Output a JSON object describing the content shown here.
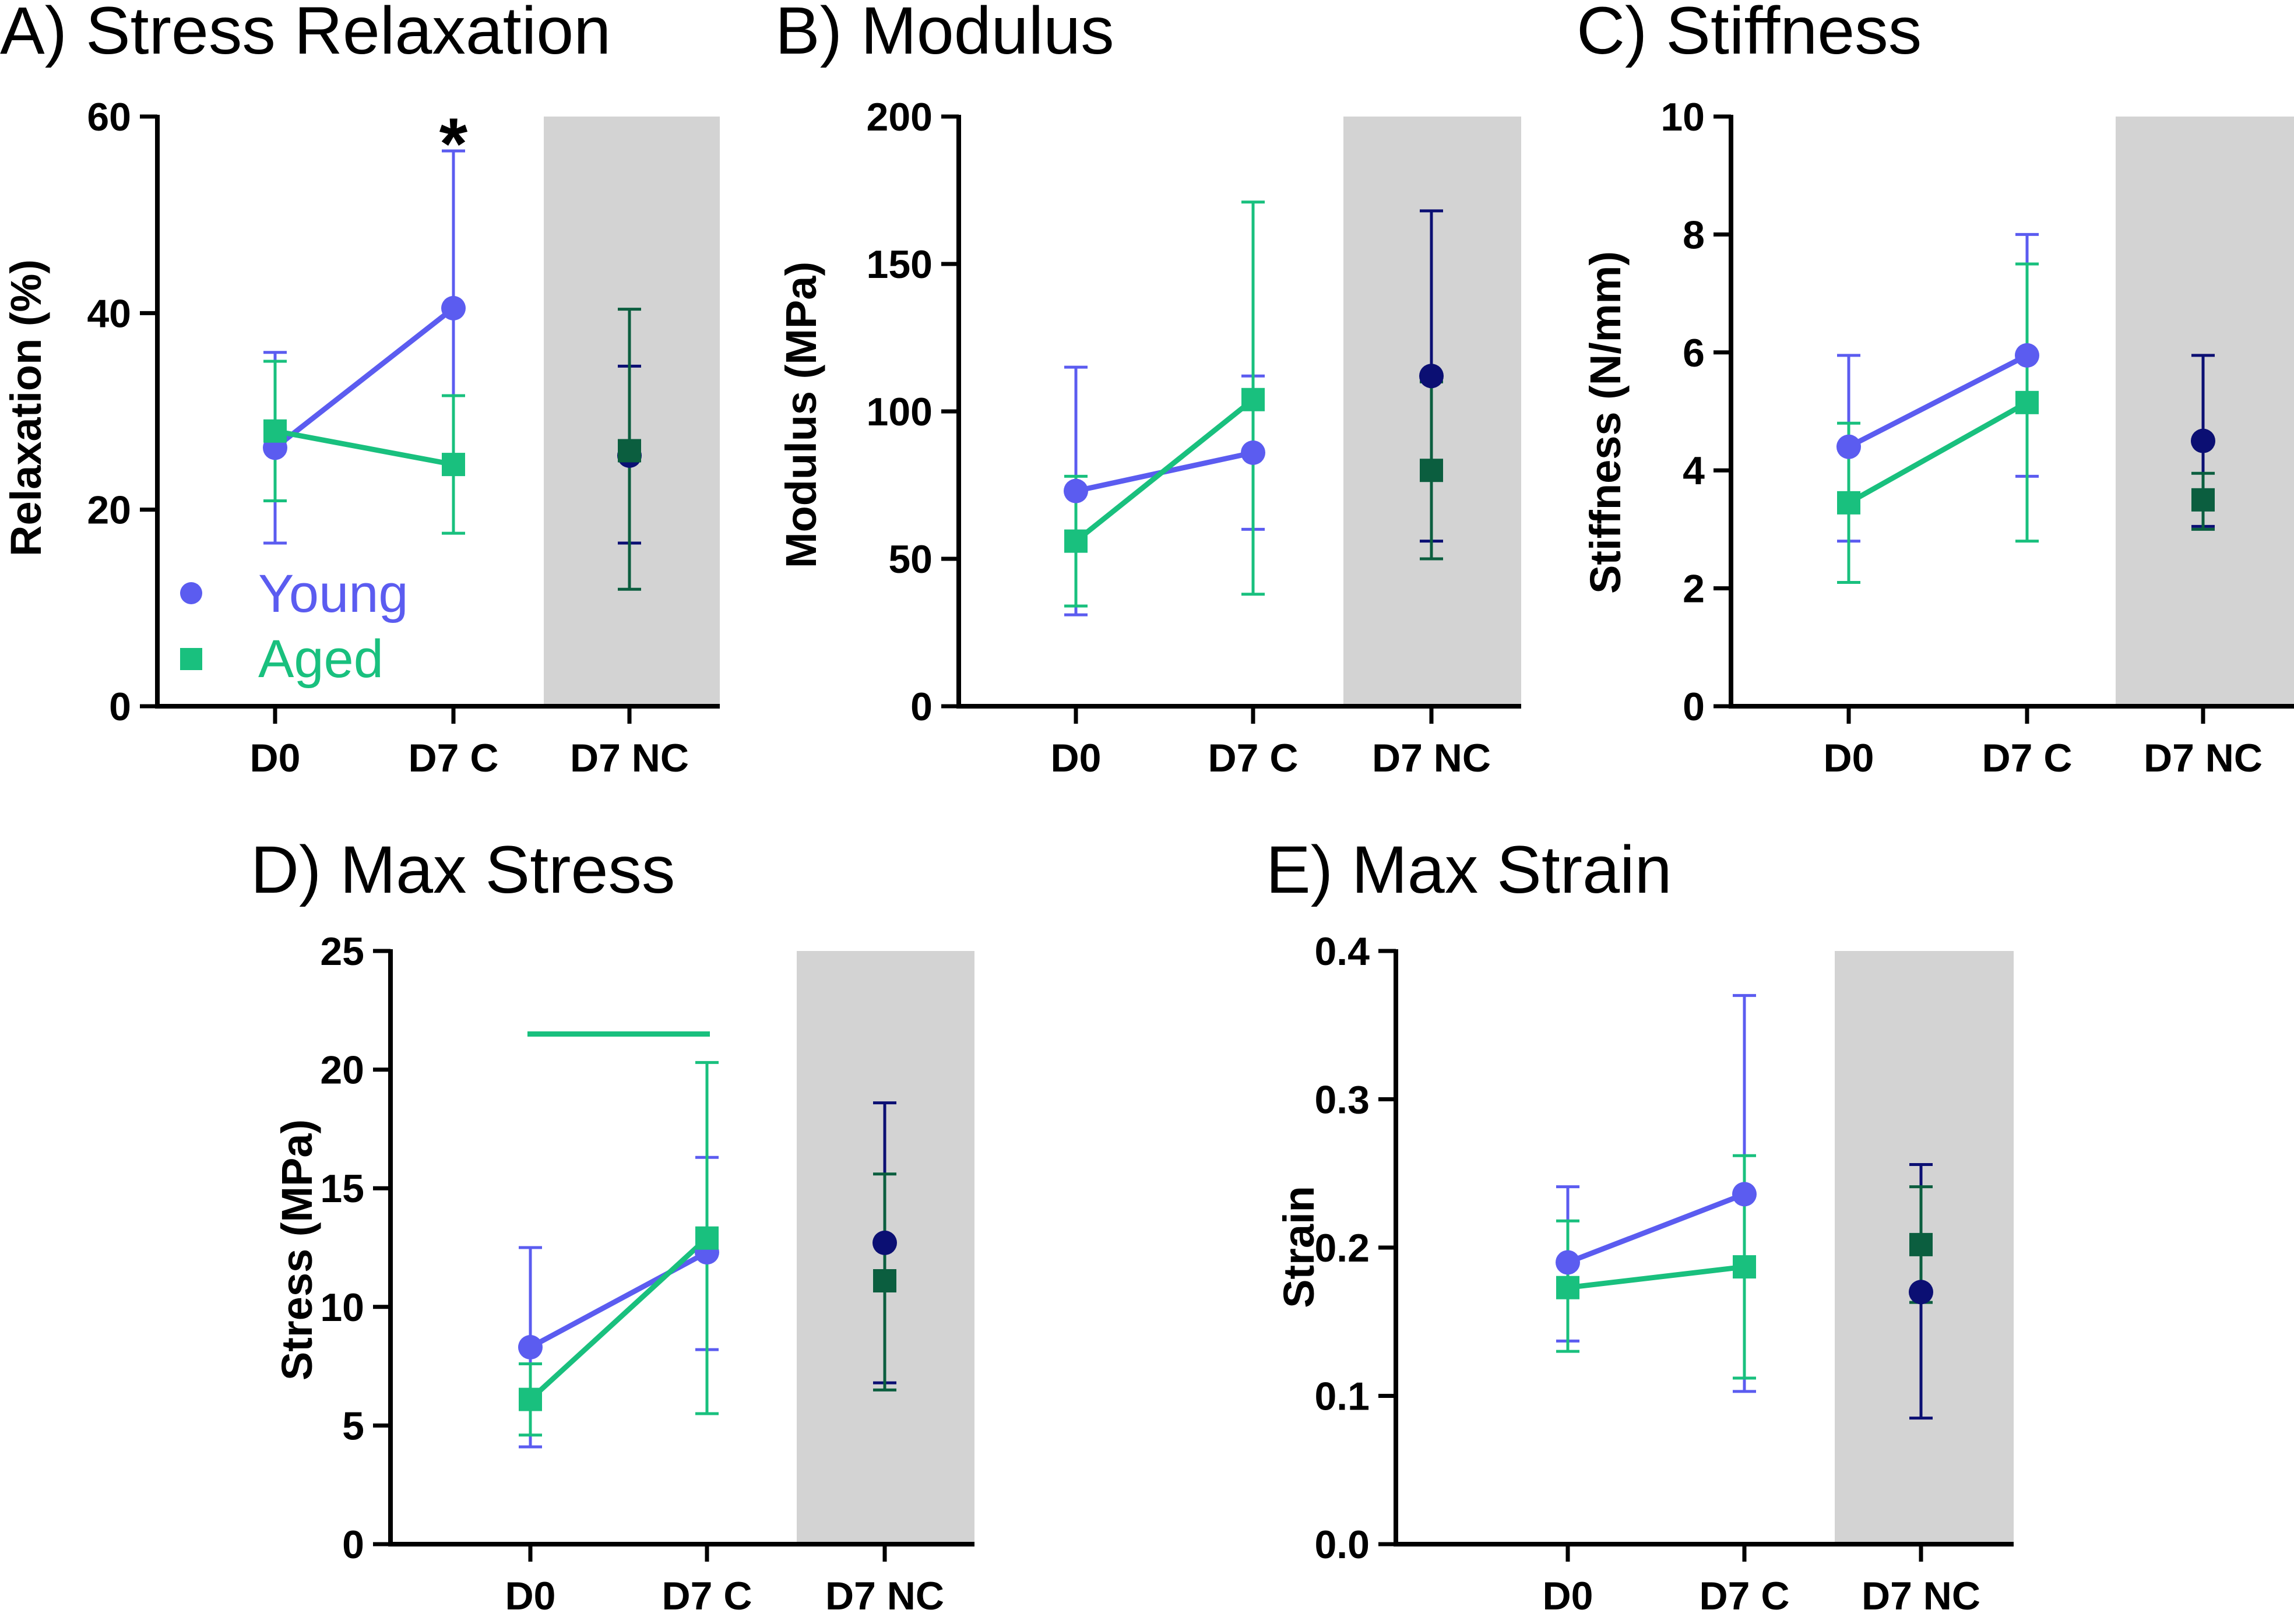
{
  "colors": {
    "young": "#5b5cf0",
    "aged": "#19c07e",
    "nc_young": "#0b0f73",
    "nc_aged": "#0b5e3f",
    "nc_shade": "#d3d3d3",
    "axis": "#000000"
  },
  "legend": {
    "young": "Young",
    "aged": "Aged"
  },
  "chart_data": [
    {
      "id": "A",
      "type": "scatter",
      "title": "A) Stress Relaxation",
      "xlabel": "",
      "ylabel": "Relaxation (%)",
      "categories": [
        "D0",
        "D7 C",
        "D7 NC"
      ],
      "ylim": [
        0,
        60
      ],
      "yticks": [
        "0",
        "20",
        "40",
        "60"
      ],
      "shaded_category": "D7 NC",
      "legend": "inside-bottom-left",
      "annotations": [
        {
          "text": "*",
          "category": "D7 C"
        }
      ],
      "series": [
        {
          "name": "Young",
          "marker": "circle",
          "values": [
            26.3,
            40.5,
            25.5
          ],
          "err_low": [
            16.6,
            24.5,
            16.6
          ],
          "err_high": [
            36.0,
            56.5,
            34.6
          ]
        },
        {
          "name": "Aged",
          "marker": "square",
          "values": [
            28.0,
            24.6,
            26.0
          ],
          "err_low": [
            20.9,
            17.6,
            11.9
          ],
          "err_high": [
            35.1,
            31.6,
            40.4
          ]
        }
      ]
    },
    {
      "id": "B",
      "type": "scatter",
      "title": "B) Modulus",
      "xlabel": "",
      "ylabel": "Modulus (MPa)",
      "categories": [
        "D0",
        "D7 C",
        "D7 NC"
      ],
      "ylim": [
        0,
        200
      ],
      "yticks": [
        "0",
        "50",
        "100",
        "150",
        "200"
      ],
      "shaded_category": "D7 NC",
      "series": [
        {
          "name": "Young",
          "marker": "circle",
          "values": [
            73,
            86,
            112
          ],
          "err_low": [
            31,
            60,
            56
          ],
          "err_high": [
            115,
            112,
            168
          ]
        },
        {
          "name": "Aged",
          "marker": "square",
          "values": [
            56,
            104,
            80
          ],
          "err_low": [
            34,
            38,
            50
          ],
          "err_high": [
            78,
            171,
            110
          ]
        }
      ]
    },
    {
      "id": "C",
      "type": "scatter",
      "title": "C) Stiffness",
      "xlabel": "",
      "ylabel": "Stiffness (N/mm)",
      "categories": [
        "D0",
        "D7 C",
        "D7 NC"
      ],
      "ylim": [
        0,
        10
      ],
      "yticks": [
        "0",
        "2",
        "4",
        "6",
        "8",
        "10"
      ],
      "shaded_category": "D7 NC",
      "series": [
        {
          "name": "Young",
          "marker": "circle",
          "values": [
            4.4,
            5.95,
            4.5
          ],
          "err_low": [
            2.8,
            3.9,
            3.05
          ],
          "err_high": [
            5.95,
            8.0,
            5.95
          ]
        },
        {
          "name": "Aged",
          "marker": "square",
          "values": [
            3.45,
            5.15,
            3.5
          ],
          "err_low": [
            2.1,
            2.8,
            3.0
          ],
          "err_high": [
            4.8,
            7.5,
            3.95
          ]
        }
      ]
    },
    {
      "id": "D",
      "type": "scatter",
      "title": "D) Max Stress",
      "xlabel": "",
      "ylabel": "Stress (MPa)",
      "categories": [
        "D0",
        "D7 C",
        "D7 NC"
      ],
      "ylim": [
        0,
        25
      ],
      "yticks": [
        "0",
        "5",
        "10",
        "15",
        "20",
        "25"
      ],
      "shaded_category": "D7 NC",
      "significance_bar": {
        "from": "D0",
        "to": "D7 C",
        "y": 21.5,
        "series": "Aged"
      },
      "series": [
        {
          "name": "Young",
          "marker": "circle",
          "values": [
            8.3,
            12.3,
            12.7
          ],
          "err_low": [
            4.1,
            8.2,
            6.8
          ],
          "err_high": [
            12.5,
            16.3,
            18.6
          ]
        },
        {
          "name": "Aged",
          "marker": "square",
          "values": [
            6.1,
            12.9,
            11.1
          ],
          "err_low": [
            4.6,
            5.5,
            6.5
          ],
          "err_high": [
            7.6,
            20.3,
            15.6
          ]
        }
      ]
    },
    {
      "id": "E",
      "type": "scatter",
      "title": "E) Max Strain",
      "xlabel": "",
      "ylabel": "Strain",
      "categories": [
        "D0",
        "D7 C",
        "D7 NC"
      ],
      "ylim": [
        0,
        0.4
      ],
      "yticks": [
        "0.0",
        "0.1",
        "0.2",
        "0.3",
        "0.4"
      ],
      "shaded_category": "D7 NC",
      "series": [
        {
          "name": "Young",
          "marker": "circle",
          "values": [
            0.19,
            0.236,
            0.17
          ],
          "err_low": [
            0.137,
            0.103,
            0.085
          ],
          "err_high": [
            0.241,
            0.37,
            0.256
          ]
        },
        {
          "name": "Aged",
          "marker": "square",
          "values": [
            0.173,
            0.187,
            0.202
          ],
          "err_low": [
            0.13,
            0.112,
            0.163
          ],
          "err_high": [
            0.218,
            0.262,
            0.241
          ]
        }
      ]
    }
  ]
}
